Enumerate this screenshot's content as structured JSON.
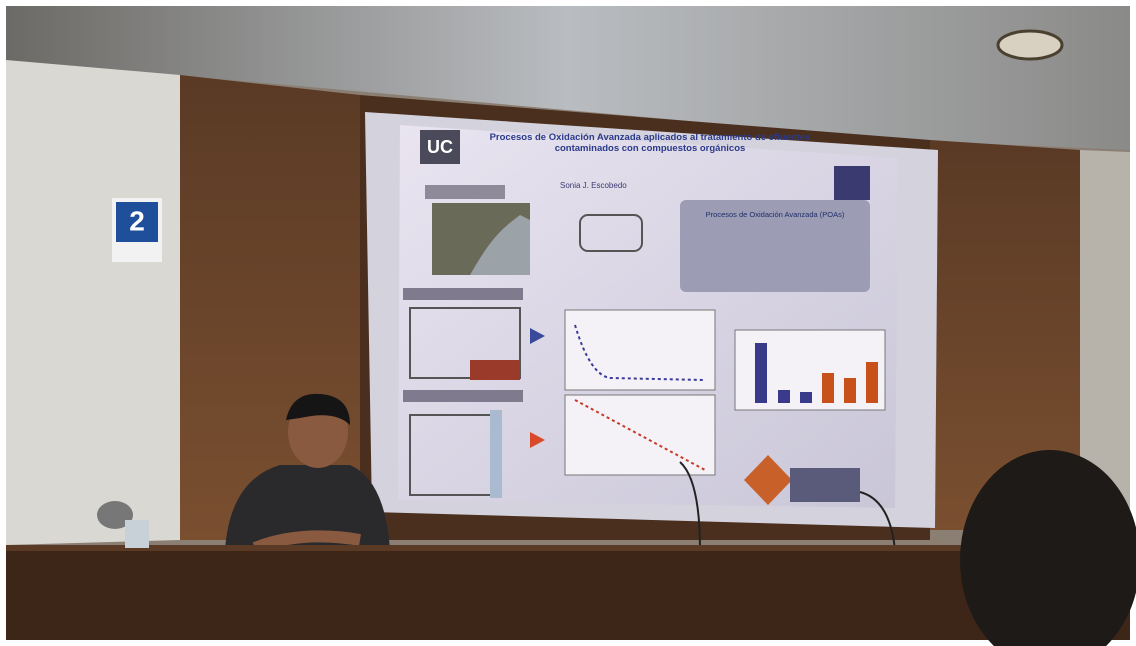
{
  "slide": {
    "logo": "UC",
    "title": "Procesos de Oxidación Avanzada aplicados al tratamiento de efluentes contaminados con compuestos orgánicos",
    "author": "Sonia J. Escobedo",
    "box_title": "Procesos de Oxidación Avanzada (POAs)"
  },
  "sign": {
    "label": "2"
  }
}
